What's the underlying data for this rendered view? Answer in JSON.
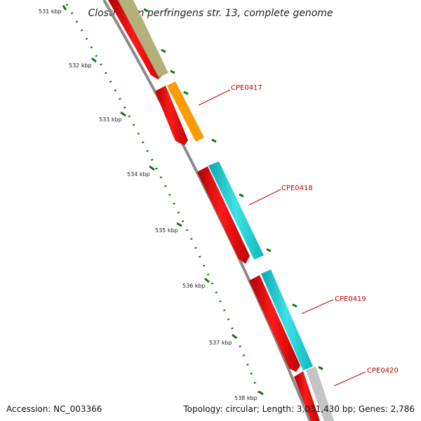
{
  "title": "Clostridium perfringens str. 13, complete genome",
  "accession": "Accession: NC_003366",
  "summary": "Topology: circular; Length: 3,031,430 bp; Genes: 2,786",
  "colors": {
    "cds_red": "#e80000",
    "backbone": "#8a8a8a",
    "tick": "#117711",
    "label_red": "#cc0000",
    "olive": "#b4b07a",
    "orange": "#ff9a00",
    "cyan": "#1ccfd4",
    "grey": "#c4c4c4"
  },
  "ticks": [
    {
      "label": "531 kbp"
    },
    {
      "label": "532 kbp"
    },
    {
      "label": "533 kbp"
    },
    {
      "label": "534 kbp"
    },
    {
      "label": "535 kbp"
    },
    {
      "label": "536 kbp"
    },
    {
      "label": "537 kbp"
    },
    {
      "label": "538 kbp"
    }
  ],
  "gene_labels": [
    {
      "name": "CPE0417"
    },
    {
      "name": "CPE0418"
    },
    {
      "name": "CPE0419"
    },
    {
      "name": "CPE0420"
    }
  ]
}
